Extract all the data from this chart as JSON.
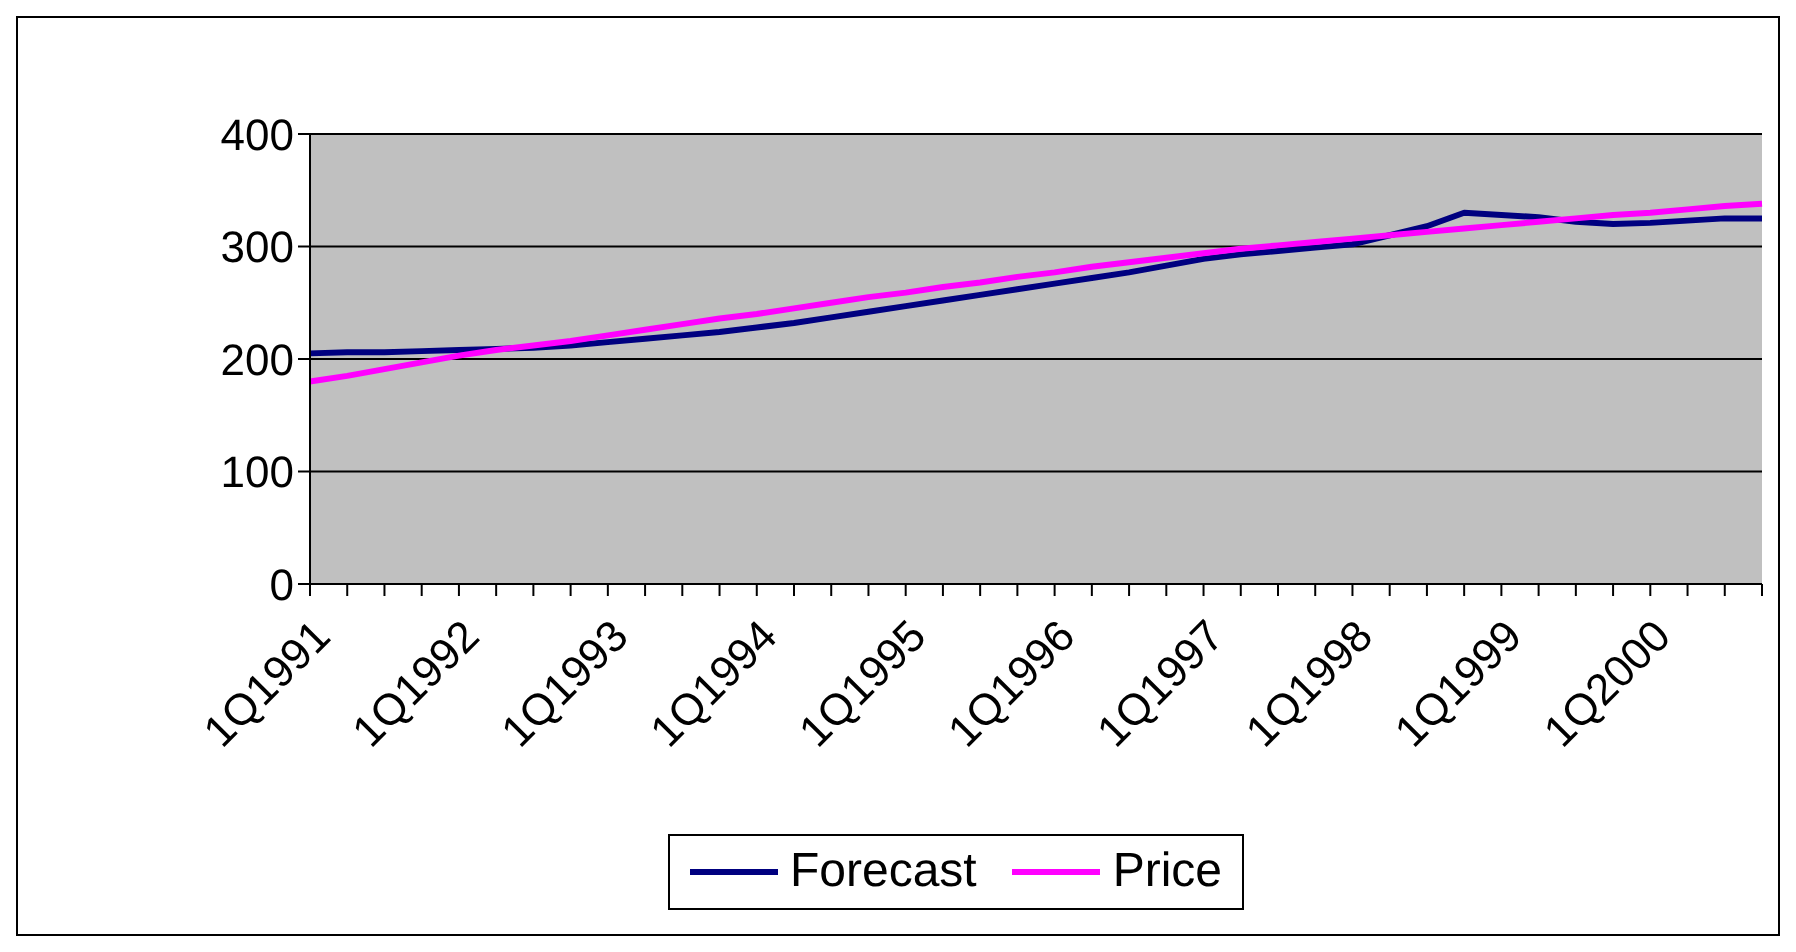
{
  "chart_data": {
    "type": "line",
    "categories": [
      "1Q1991",
      null,
      null,
      null,
      "1Q1992",
      null,
      null,
      null,
      "1Q1993",
      null,
      null,
      null,
      "1Q1994",
      null,
      null,
      null,
      "1Q1995",
      null,
      null,
      null,
      "1Q1996",
      null,
      null,
      null,
      "1Q1997",
      null,
      null,
      null,
      "1Q1998",
      null,
      null,
      null,
      "1Q1999",
      null,
      null,
      null,
      "1Q2000",
      null,
      null,
      null
    ],
    "series": [
      {
        "name": "Forecast",
        "color": "#000080",
        "values": [
          205,
          206,
          206,
          207,
          208,
          209,
          210,
          212,
          215,
          218,
          221,
          224,
          228,
          232,
          237,
          242,
          247,
          252,
          257,
          262,
          267,
          272,
          277,
          283,
          289,
          293,
          296,
          299,
          302,
          310,
          318,
          330,
          328,
          326,
          322,
          320,
          321,
          323,
          325,
          325
        ]
      },
      {
        "name": "Price",
        "color": "#ff00ff",
        "values": [
          180,
          185,
          191,
          197,
          203,
          208,
          212,
          216,
          221,
          226,
          231,
          236,
          240,
          245,
          250,
          255,
          259,
          264,
          268,
          273,
          277,
          282,
          286,
          290,
          294,
          298,
          301,
          304,
          307,
          310,
          313,
          316,
          319,
          322,
          325,
          328,
          330,
          333,
          336,
          338
        ]
      }
    ],
    "ylim": [
      0,
      400
    ],
    "yticks": [
      0,
      100,
      200,
      300,
      400
    ],
    "grid": "y",
    "legend": "bottom",
    "marker": "none",
    "line_style": "solid"
  }
}
